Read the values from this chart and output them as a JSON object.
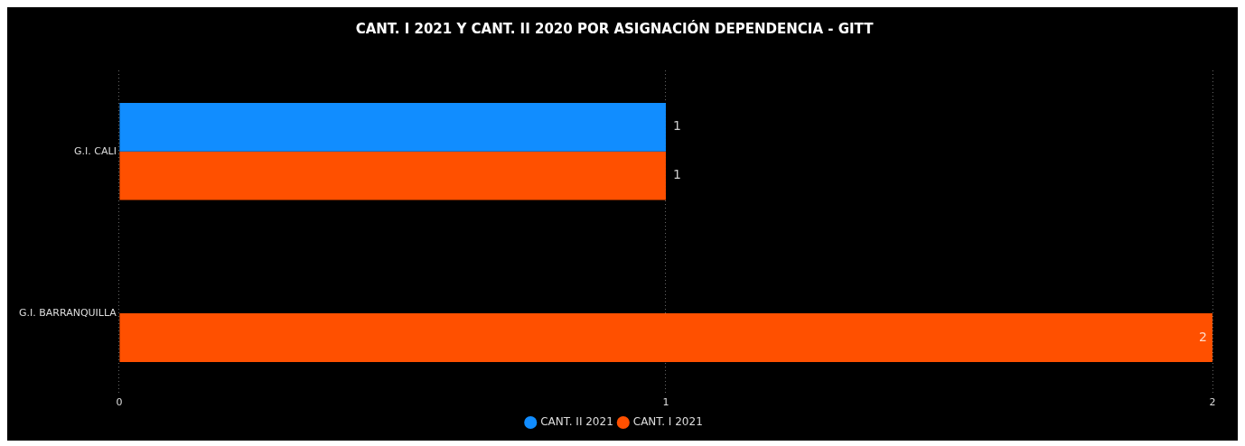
{
  "chart_data": {
    "type": "bar",
    "orientation": "horizontal",
    "title": "CANT. I 2021 Y CANT. II 2020 POR ASIGNACIÓN DEPENDENCIA - GITT",
    "categories": [
      "G.I. CALI",
      "G.I. BARRANQUILLA"
    ],
    "series": [
      {
        "name": "CANT. II 2021",
        "color": "#118dff",
        "values": [
          1,
          null
        ]
      },
      {
        "name": "CANT. I 2021",
        "color": "#ff5000",
        "values": [
          1,
          2
        ]
      }
    ],
    "xlim": [
      0,
      2
    ],
    "xticks": [
      0,
      1,
      2
    ],
    "grid": "x",
    "legend": "bottom",
    "data_labels": true
  }
}
